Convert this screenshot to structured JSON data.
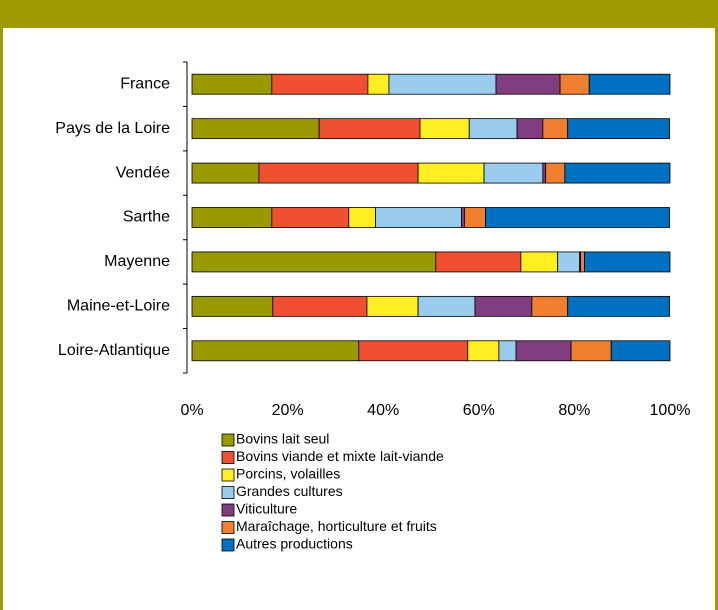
{
  "chart_data": {
    "type": "stacked-bar-horizontal",
    "categories": [
      "France",
      "Pays de la Loire",
      "Vendée",
      "Sarthe",
      "Mayenne",
      "Maine-et-Loire",
      "Loire-Atlantique"
    ],
    "series": [
      {
        "name": "Bovins lait seul",
        "color": "#999900",
        "values": [
          16.7,
          26.6,
          14.0,
          16.7,
          51.0,
          16.9,
          34.9
        ]
      },
      {
        "name": "Bovins viande et mixte lait-viande",
        "color": "#f05032",
        "values": [
          20.1,
          21.1,
          33.3,
          16.1,
          17.8,
          19.7,
          22.8
        ]
      },
      {
        "name": "Porcins, volailles",
        "color": "#ffee22",
        "values": [
          4.4,
          10.3,
          13.8,
          5.6,
          7.7,
          10.7,
          6.5
        ]
      },
      {
        "name": "Grandes cultures",
        "color": "#99ccee",
        "values": [
          22.4,
          10.0,
          12.3,
          18.0,
          4.6,
          11.9,
          3.6
        ]
      },
      {
        "name": "Viticulture",
        "color": "#803e80",
        "values": [
          13.4,
          5.4,
          0.6,
          0.6,
          0.2,
          11.9,
          11.5
        ]
      },
      {
        "name": "Maraîchage, horticulture et fruits",
        "color": "#f08030",
        "values": [
          6.1,
          5.2,
          4.0,
          4.4,
          0.8,
          7.5,
          8.4
        ]
      },
      {
        "name": "Autres productions",
        "color": "#0070c0",
        "values": [
          16.9,
          21.3,
          22.0,
          38.5,
          17.9,
          21.3,
          12.3
        ]
      }
    ],
    "xlim": [
      0,
      100
    ],
    "xticks": [
      {
        "value": 0,
        "label": "0%"
      },
      {
        "value": 20,
        "label": "20%"
      },
      {
        "value": 40,
        "label": "40%"
      },
      {
        "value": 60,
        "label": "60%"
      },
      {
        "value": 80,
        "label": "80%"
      },
      {
        "value": 100,
        "label": "100%"
      }
    ]
  }
}
